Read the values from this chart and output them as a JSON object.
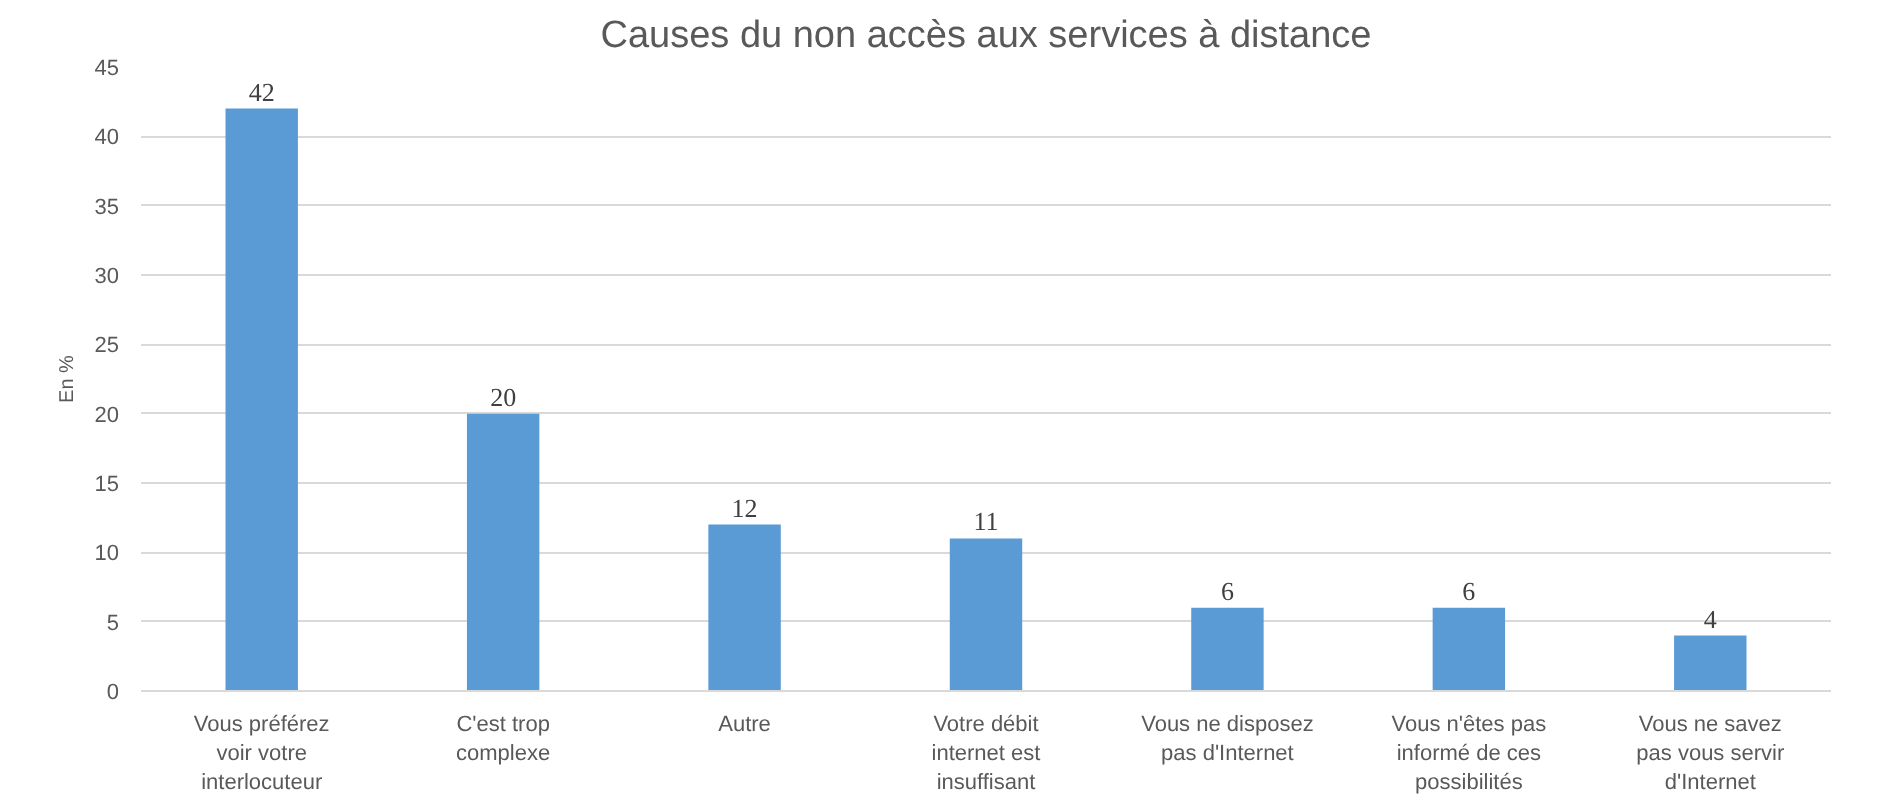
{
  "chart_data": {
    "type": "bar",
    "title": "Causes du non accès aux services à distance",
    "ylabel": "En %",
    "categories": [
      "Vous préférez voir votre interlocuteur",
      "C'est trop complexe",
      "Autre",
      "Votre débit internet est insuffisant",
      "Vous ne disposez pas d'Internet",
      "Vous n'êtes pas informé de ces possibilités",
      "Vous ne savez pas vous servir d'Internet"
    ],
    "values": [
      42,
      20,
      12,
      11,
      6,
      6,
      4
    ],
    "color": "#5b9bd5",
    "ylim": [
      0,
      45
    ],
    "yticks": [
      0,
      5,
      10,
      15,
      20,
      25,
      30,
      35,
      40,
      45
    ],
    "grid": "y",
    "data_labels": true
  }
}
